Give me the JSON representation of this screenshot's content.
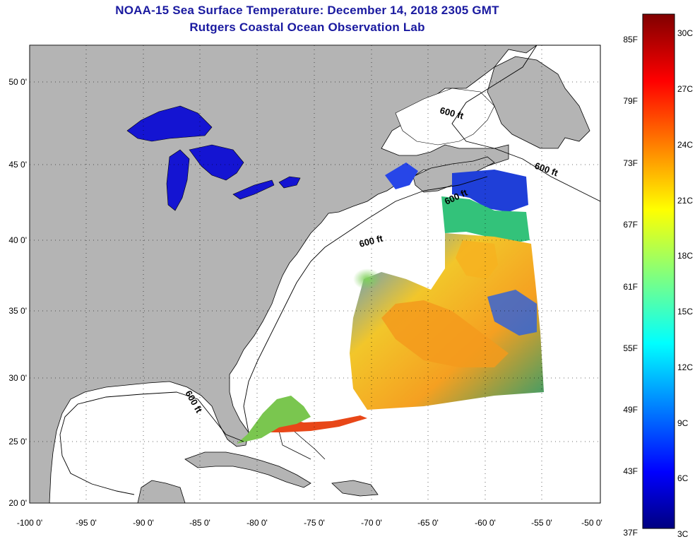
{
  "title": {
    "line1": "NOAA-15 Sea Surface Temperature:  December 14, 2018 2305 GMT",
    "line2": "Rutgers Coastal Ocean Observation Lab"
  },
  "map": {
    "lon_range": [
      -100,
      -50
    ],
    "lat_range": [
      20,
      52
    ],
    "lon_ticks": [
      "-100 0'",
      "-95 0'",
      "-90 0'",
      "-85 0'",
      "-80 0'",
      "-75 0'",
      "-70 0'",
      "-65 0'",
      "-60 0'",
      "-55 0'",
      "-50 0'"
    ],
    "lat_ticks": [
      "20 0'",
      "25 0'",
      "30 0'",
      "35 0'",
      "40 0'",
      "45 0'",
      "50 0'"
    ],
    "contour_labels": [
      "600 ft",
      "600 ft",
      "600 ft",
      "600 ft",
      "600 ft"
    ],
    "land_color": "#b4b4b4",
    "grid": "dotted"
  },
  "colorbar": {
    "fahrenheit": [
      "85F",
      "79F",
      "73F",
      "67F",
      "61F",
      "55F",
      "49F",
      "43F",
      "37F"
    ],
    "celsius": [
      "30C",
      "27C",
      "24C",
      "21C",
      "18C",
      "15C",
      "12C",
      "9C",
      "6C",
      "3C"
    ],
    "range_c": [
      3,
      31
    ]
  }
}
